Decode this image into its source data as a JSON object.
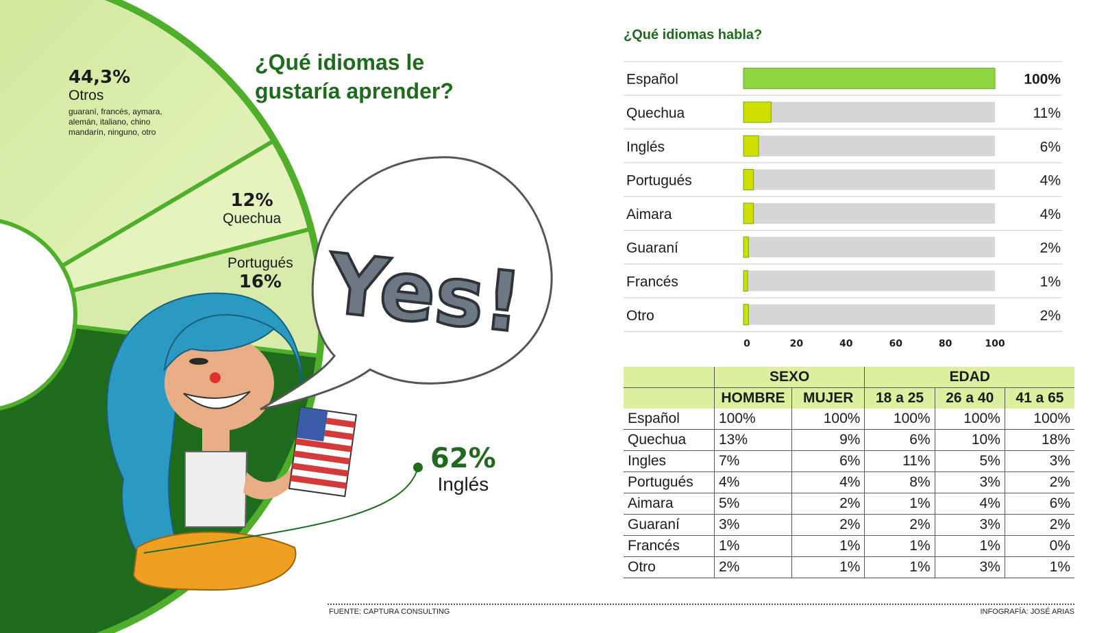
{
  "donut": {
    "title": "¿Qué idiomas le gustaría aprender?",
    "otros": {
      "pct": "44,3%",
      "name": "Otros",
      "note": "guaraní, francés, aymara, alemán, italiano, chino mandarín, ninguno, otro"
    },
    "quechua": {
      "pct": "12%",
      "name": "Quechua"
    },
    "portugues": {
      "pct": "16%",
      "name": "Portugués"
    },
    "ingles": {
      "pct": "62%",
      "name": "Inglés"
    },
    "speech_text": "Yes!"
  },
  "bars": {
    "title": "¿Qué idiomas habla?",
    "rows": [
      {
        "label": "Español",
        "value_label": "100%"
      },
      {
        "label": "Quechua",
        "value_label": "11%"
      },
      {
        "label": "Inglés",
        "value_label": "6%"
      },
      {
        "label": "Portugués",
        "value_label": "4%"
      },
      {
        "label": "Aimara",
        "value_label": "4%"
      },
      {
        "label": "Guaraní",
        "value_label": "2%"
      },
      {
        "label": "Francés",
        "value_label": "1%"
      },
      {
        "label": "Otro",
        "value_label": "2%"
      }
    ],
    "ticks": [
      "0",
      "20",
      "40",
      "60",
      "80",
      "100"
    ]
  },
  "table": {
    "group_headers": [
      "SEXO",
      "EDAD"
    ],
    "columns": [
      "HOMBRE",
      "MUJER",
      "18 a 25",
      "26 a 40",
      "41 a 65"
    ],
    "rows": [
      {
        "label": "Español",
        "values": [
          "100%",
          "100%",
          "100%",
          "100%",
          "100%"
        ]
      },
      {
        "label": "Quechua",
        "values": [
          "13%",
          "9%",
          "6%",
          "10%",
          "18%"
        ]
      },
      {
        "label": "Ingles",
        "values": [
          "7%",
          "6%",
          "11%",
          "5%",
          "3%"
        ]
      },
      {
        "label": "Portugués",
        "values": [
          "4%",
          "4%",
          "8%",
          "3%",
          "2%"
        ]
      },
      {
        "label": "Aimara",
        "values": [
          "5%",
          "2%",
          "1%",
          "4%",
          "6%"
        ]
      },
      {
        "label": "Guaraní",
        "values": [
          "3%",
          "2%",
          "2%",
          "3%",
          "2%"
        ]
      },
      {
        "label": "Francés",
        "values": [
          "1%",
          "1%",
          "1%",
          "1%",
          "0%"
        ]
      },
      {
        "label": "Otro",
        "values": [
          "2%",
          "1%",
          "1%",
          "3%",
          "1%"
        ]
      }
    ]
  },
  "footer": {
    "source": "FUENTE: CAPTURA CONSULTING",
    "credit": "INFOGRAFÍA: JOSÉ ARIAS"
  },
  "colors": {
    "dark_green": "#1e6b1e",
    "bar_full": "#8ed63f",
    "bar_small": "#cfe000",
    "track": "#d6d6d6",
    "header_bg": "#dcef9e"
  },
  "chart_data": [
    {
      "type": "pie",
      "title": "¿Qué idiomas le gustaría aprender?",
      "categories": [
        "Otros",
        "Quechua",
        "Portugués",
        "Inglés"
      ],
      "values": [
        44.3,
        12,
        16,
        62
      ],
      "note": "guaraní, francés, aymara, alemán, italiano, chino mandarín, ninguno, otro"
    },
    {
      "type": "bar",
      "orientation": "horizontal",
      "title": "¿Qué idiomas habla?",
      "categories": [
        "Español",
        "Quechua",
        "Inglés",
        "Portugués",
        "Aimara",
        "Guaraní",
        "Francés",
        "Otro"
      ],
      "values": [
        100,
        11,
        6,
        4,
        4,
        2,
        1,
        2
      ],
      "xlim": [
        0,
        100
      ],
      "ticks": [
        0,
        20,
        40,
        60,
        80,
        100
      ]
    },
    {
      "type": "table",
      "columns": [
        "HOMBRE",
        "MUJER",
        "18 a 25",
        "26 a 40",
        "41 a 65"
      ],
      "rows": [
        "Español",
        "Quechua",
        "Ingles",
        "Portugués",
        "Aimara",
        "Guaraní",
        "Francés",
        "Otro"
      ]
    }
  ]
}
